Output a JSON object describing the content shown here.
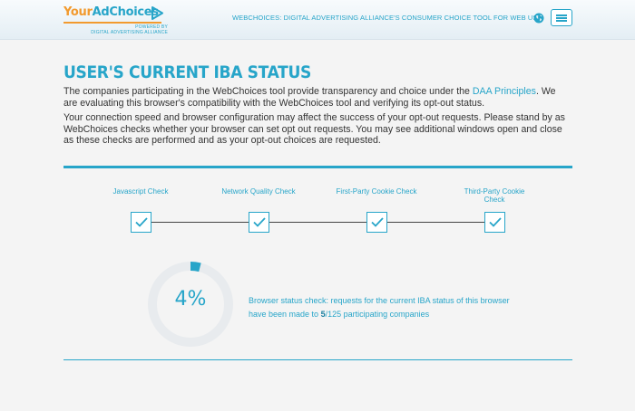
{
  "header": {
    "logo_your": "Your",
    "logo_adchoices": "AdChoices",
    "logo_powered": "POWERED BY",
    "logo_alliance": "DIGITAL ADVERTISING ALLIANCE",
    "tagline": "WEBCHOICES: DIGITAL ADVERTISING ALLIANCE'S CONSUMER CHOICE TOOL FOR WEB US",
    "icons": {
      "globe": "globe-icon",
      "menu": "hamburger-menu-icon",
      "logo": "play-icon"
    }
  },
  "main": {
    "title": "USER'S CURRENT IBA STATUS",
    "para1_before": "The companies participating in the WebChoices tool provide transparency and choice under the ",
    "para1_link": "DAA Principles",
    "para1_after": ". We are evaluating this browser's compatibility with the WebChoices tool and verifying its opt-out status.",
    "para2": "Your connection speed and browser configuration may affect the success of your opt-out requests. Please stand by as WebChoices checks whether your browser can set opt out requests. You may see additional windows open and close as these checks are performed and as your opt-out choices are requested."
  },
  "checks": [
    {
      "label": "Javascript Check",
      "status": "checked"
    },
    {
      "label": "Network Quality Check",
      "status": "checked"
    },
    {
      "label": "First-Party Cookie Check",
      "status": "checked"
    },
    {
      "label": "Third-Party Cookie Check",
      "status": "checked"
    }
  ],
  "progress": {
    "percent": 4,
    "percent_text": "4%",
    "text_before": "Browser status check: requests for the current IBA status of this browser have been made to ",
    "done": "5",
    "text_after": "/125 participating companies"
  },
  "colors": {
    "accent": "#27a5c9",
    "brand_orange": "#f29a2e",
    "ring_track": "#e8ebee"
  }
}
